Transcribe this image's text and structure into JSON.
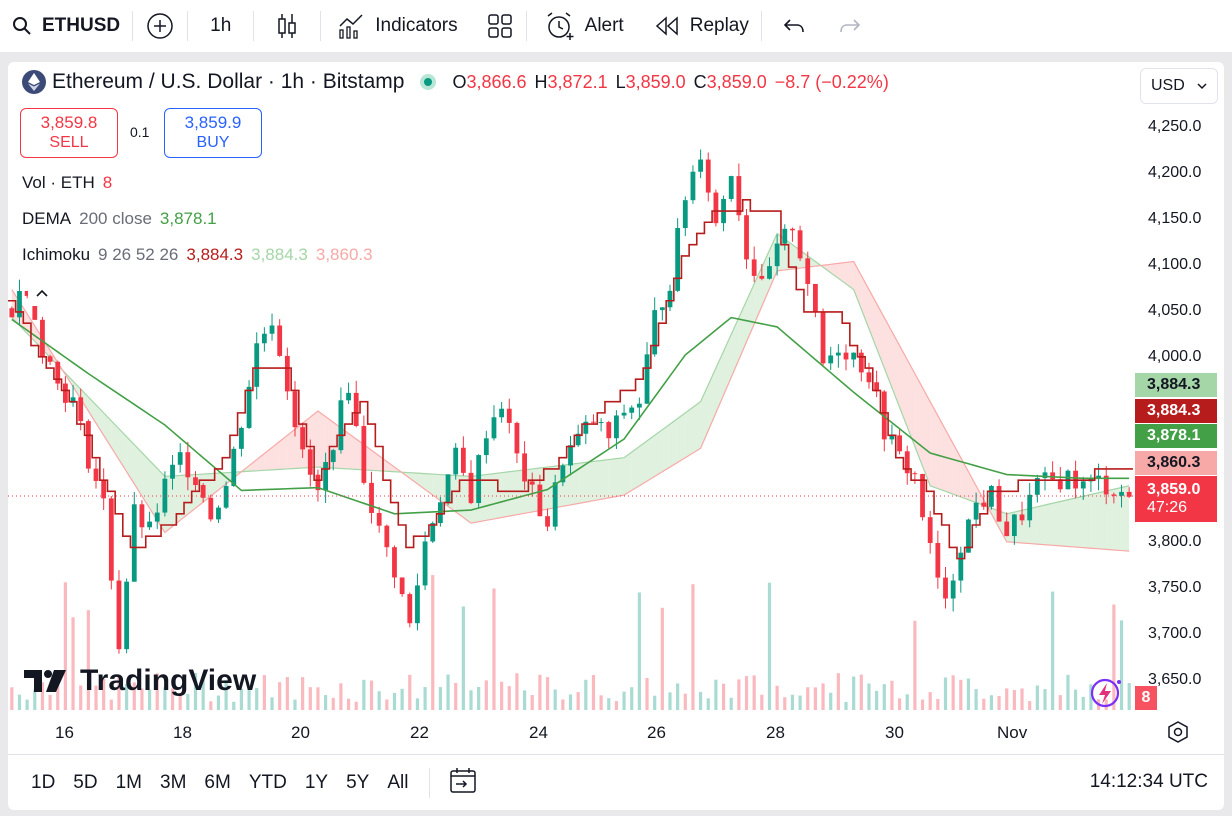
{
  "toolbar": {
    "symbol": "ETHUSD",
    "interval": "1h",
    "indicators_label": "Indicators",
    "alert_label": "Alert",
    "replay_label": "Replay"
  },
  "legend": {
    "title": "Ethereum / U.S. Dollar · 1h · Bitstamp",
    "o_label": "O",
    "o_value": "3,866.6",
    "h_label": "H",
    "h_value": "3,872.1",
    "l_label": "L",
    "l_value": "3,859.0",
    "c_label": "C",
    "c_value": "3,859.0",
    "change": "−8.7 (−0.22%)"
  },
  "trade": {
    "sell_price": "3,859.8",
    "sell_label": "SELL",
    "quantity": "0.1",
    "buy_price": "3,859.9",
    "buy_label": "BUY"
  },
  "indicators": {
    "vol_label": "Vol · ETH",
    "vol_value": "8",
    "dema_label": "DEMA",
    "dema_params": "200 close",
    "dema_value": "3,878.1",
    "ichimoku_label": "Ichimoku",
    "ichimoku_params": "9 26 52 26",
    "ichimoku_v1": "3,884.3",
    "ichimoku_v2": "3,884.3",
    "ichimoku_v3": "3,860.3"
  },
  "currency": "USD",
  "y_axis": [
    "4,250.0",
    "4,200.0",
    "4,150.0",
    "4,100.0",
    "4,050.0",
    "4,000.0",
    "3,800.0",
    "3,750.0",
    "3,700.0",
    "3,650.0"
  ],
  "price_tags": {
    "senkou_a": "3,884.3",
    "conversion": "3,884.3",
    "dema": "3,878.1",
    "senkou_b": "3,860.3",
    "last": "3,859.0",
    "countdown": "47:26",
    "volume": "8"
  },
  "x_axis": [
    "16",
    "18",
    "20",
    "22",
    "24",
    "26",
    "28",
    "30",
    "Nov"
  ],
  "ranges": [
    "1D",
    "5D",
    "1M",
    "3M",
    "6M",
    "YTD",
    "1Y",
    "5Y",
    "All"
  ],
  "clock": "14:12:34 UTC",
  "brand": "TradingView",
  "colors": {
    "up": "#089981",
    "down": "#f23645",
    "dema": "#43a047",
    "conversion": "#b71c1c",
    "cloud_up": "#a5d6a7",
    "cloud_down": "#f7a9a7"
  },
  "chart_data": {
    "type": "candlestick",
    "symbol": "ETHUSD",
    "interval": "1h",
    "ylim": [
      3630,
      4270
    ],
    "x_ticks": [
      "16",
      "18",
      "20",
      "22",
      "24",
      "26",
      "28",
      "30",
      "Nov"
    ],
    "close_path": [
      [
        0,
        4060
      ],
      [
        2,
        4085
      ],
      [
        4,
        4020
      ],
      [
        6,
        3980
      ],
      [
        8,
        3960
      ],
      [
        10,
        3900
      ],
      [
        12,
        3850
      ],
      [
        14,
        3700
      ],
      [
        16,
        3840
      ],
      [
        18,
        3820
      ],
      [
        20,
        3870
      ],
      [
        22,
        3900
      ],
      [
        24,
        3880
      ],
      [
        26,
        3840
      ],
      [
        28,
        3870
      ],
      [
        30,
        3940
      ],
      [
        32,
        4020
      ],
      [
        34,
        4050
      ],
      [
        36,
        3980
      ],
      [
        38,
        3900
      ],
      [
        40,
        3860
      ],
      [
        42,
        3920
      ],
      [
        44,
        3980
      ],
      [
        46,
        3880
      ],
      [
        48,
        3820
      ],
      [
        50,
        3780
      ],
      [
        52,
        3720
      ],
      [
        54,
        3810
      ],
      [
        56,
        3860
      ],
      [
        58,
        3900
      ],
      [
        60,
        3860
      ],
      [
        62,
        3930
      ],
      [
        64,
        3960
      ],
      [
        66,
        3900
      ],
      [
        68,
        3860
      ],
      [
        70,
        3830
      ],
      [
        72,
        3900
      ],
      [
        74,
        3920
      ],
      [
        76,
        3940
      ],
      [
        78,
        3920
      ],
      [
        80,
        3950
      ],
      [
        82,
        3960
      ],
      [
        84,
        4050
      ],
      [
        86,
        4090
      ],
      [
        88,
        4180
      ],
      [
        90,
        4230
      ],
      [
        92,
        4150
      ],
      [
        94,
        4210
      ],
      [
        96,
        4120
      ],
      [
        98,
        4080
      ],
      [
        100,
        4120
      ],
      [
        102,
        4150
      ],
      [
        104,
        4090
      ],
      [
        106,
        4000
      ],
      [
        108,
        4020
      ],
      [
        110,
        4010
      ],
      [
        112,
        3990
      ],
      [
        114,
        3930
      ],
      [
        116,
        3900
      ],
      [
        118,
        3880
      ],
      [
        120,
        3800
      ],
      [
        122,
        3740
      ],
      [
        124,
        3810
      ],
      [
        126,
        3850
      ],
      [
        128,
        3860
      ],
      [
        130,
        3820
      ],
      [
        132,
        3840
      ],
      [
        134,
        3870
      ],
      [
        136,
        3875
      ],
      [
        138,
        3880
      ],
      [
        140,
        3870
      ],
      [
        142,
        3875
      ],
      [
        144,
        3866
      ],
      [
        146,
        3859
      ]
    ],
    "dema_path": [
      [
        0,
        4048
      ],
      [
        10,
        3990
      ],
      [
        20,
        3935
      ],
      [
        30,
        3865
      ],
      [
        40,
        3868
      ],
      [
        50,
        3840
      ],
      [
        60,
        3844
      ],
      [
        70,
        3866
      ],
      [
        80,
        3920
      ],
      [
        88,
        4010
      ],
      [
        94,
        4050
      ],
      [
        100,
        4040
      ],
      [
        110,
        3970
      ],
      [
        120,
        3905
      ],
      [
        130,
        3882
      ],
      [
        140,
        3878
      ],
      [
        146,
        3878
      ]
    ],
    "conversion_path": [
      [
        0,
        4065
      ],
      [
        8,
        3960
      ],
      [
        12,
        3880
      ],
      [
        16,
        3800
      ],
      [
        22,
        3840
      ],
      [
        28,
        3900
      ],
      [
        32,
        3990
      ],
      [
        36,
        4000
      ],
      [
        40,
        3880
      ],
      [
        46,
        3960
      ],
      [
        52,
        3800
      ],
      [
        56,
        3840
      ],
      [
        60,
        3880
      ],
      [
        66,
        3860
      ],
      [
        72,
        3900
      ],
      [
        78,
        3960
      ],
      [
        82,
        3980
      ],
      [
        88,
        4110
      ],
      [
        92,
        4160
      ],
      [
        96,
        4170
      ],
      [
        100,
        4160
      ],
      [
        104,
        4050
      ],
      [
        108,
        4060
      ],
      [
        112,
        3990
      ],
      [
        116,
        3900
      ],
      [
        120,
        3860
      ],
      [
        124,
        3790
      ],
      [
        128,
        3860
      ],
      [
        132,
        3870
      ],
      [
        136,
        3880
      ],
      [
        140,
        3880
      ],
      [
        144,
        3884
      ],
      [
        146,
        3884
      ]
    ],
    "cloud_a": [
      [
        0,
        4050
      ],
      [
        20,
        3880
      ],
      [
        40,
        3890
      ],
      [
        60,
        3880
      ],
      [
        80,
        3900
      ],
      [
        90,
        3960
      ],
      [
        100,
        4140
      ],
      [
        110,
        4080
      ],
      [
        120,
        3870
      ],
      [
        130,
        3840
      ],
      [
        146,
        3870
      ]
    ],
    "cloud_b": [
      [
        0,
        4080
      ],
      [
        20,
        3820
      ],
      [
        40,
        3950
      ],
      [
        60,
        3830
      ],
      [
        80,
        3860
      ],
      [
        90,
        3910
      ],
      [
        100,
        4100
      ],
      [
        110,
        4110
      ],
      [
        120,
        3960
      ],
      [
        130,
        3810
      ],
      [
        146,
        3800
      ]
    ]
  }
}
